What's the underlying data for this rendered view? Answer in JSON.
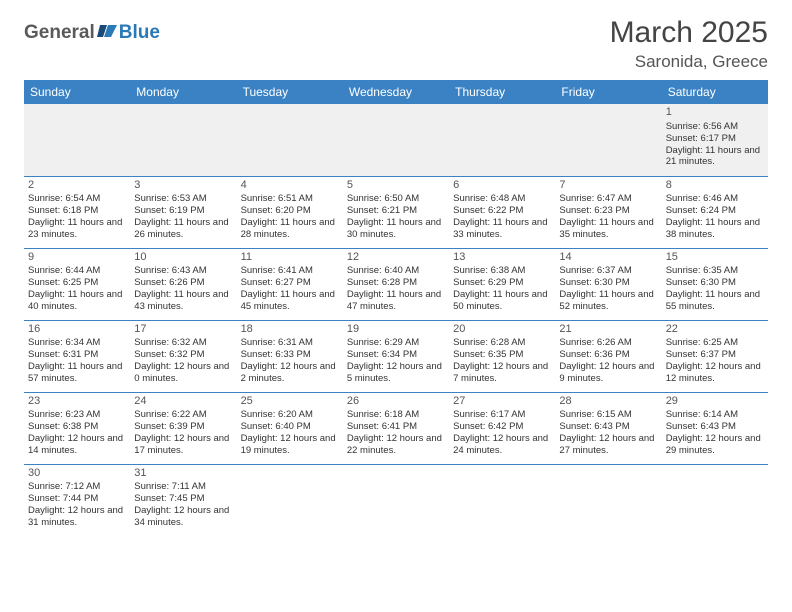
{
  "logo": {
    "text1": "General",
    "text2": "Blue"
  },
  "title": "March 2025",
  "location": "Saronida, Greece",
  "header_bg": "#3a82c4",
  "header_fg": "#ffffff",
  "border_color": "#3a82c4",
  "empty_bg": "#f0f0f0",
  "text_color": "#333333",
  "fontsize_title": 30,
  "fontsize_location": 17,
  "fontsize_dayheader": 12,
  "fontsize_cell": 9.5,
  "weekdays": [
    "Sunday",
    "Monday",
    "Tuesday",
    "Wednesday",
    "Thursday",
    "Friday",
    "Saturday"
  ],
  "weeks": [
    [
      null,
      null,
      null,
      null,
      null,
      null,
      {
        "n": "1",
        "sr": "6:56 AM",
        "ss": "6:17 PM",
        "dl": "11 hours and 21 minutes."
      }
    ],
    [
      {
        "n": "2",
        "sr": "6:54 AM",
        "ss": "6:18 PM",
        "dl": "11 hours and 23 minutes."
      },
      {
        "n": "3",
        "sr": "6:53 AM",
        "ss": "6:19 PM",
        "dl": "11 hours and 26 minutes."
      },
      {
        "n": "4",
        "sr": "6:51 AM",
        "ss": "6:20 PM",
        "dl": "11 hours and 28 minutes."
      },
      {
        "n": "5",
        "sr": "6:50 AM",
        "ss": "6:21 PM",
        "dl": "11 hours and 30 minutes."
      },
      {
        "n": "6",
        "sr": "6:48 AM",
        "ss": "6:22 PM",
        "dl": "11 hours and 33 minutes."
      },
      {
        "n": "7",
        "sr": "6:47 AM",
        "ss": "6:23 PM",
        "dl": "11 hours and 35 minutes."
      },
      {
        "n": "8",
        "sr": "6:46 AM",
        "ss": "6:24 PM",
        "dl": "11 hours and 38 minutes."
      }
    ],
    [
      {
        "n": "9",
        "sr": "6:44 AM",
        "ss": "6:25 PM",
        "dl": "11 hours and 40 minutes."
      },
      {
        "n": "10",
        "sr": "6:43 AM",
        "ss": "6:26 PM",
        "dl": "11 hours and 43 minutes."
      },
      {
        "n": "11",
        "sr": "6:41 AM",
        "ss": "6:27 PM",
        "dl": "11 hours and 45 minutes."
      },
      {
        "n": "12",
        "sr": "6:40 AM",
        "ss": "6:28 PM",
        "dl": "11 hours and 47 minutes."
      },
      {
        "n": "13",
        "sr": "6:38 AM",
        "ss": "6:29 PM",
        "dl": "11 hours and 50 minutes."
      },
      {
        "n": "14",
        "sr": "6:37 AM",
        "ss": "6:30 PM",
        "dl": "11 hours and 52 minutes."
      },
      {
        "n": "15",
        "sr": "6:35 AM",
        "ss": "6:30 PM",
        "dl": "11 hours and 55 minutes."
      }
    ],
    [
      {
        "n": "16",
        "sr": "6:34 AM",
        "ss": "6:31 PM",
        "dl": "11 hours and 57 minutes."
      },
      {
        "n": "17",
        "sr": "6:32 AM",
        "ss": "6:32 PM",
        "dl": "12 hours and 0 minutes."
      },
      {
        "n": "18",
        "sr": "6:31 AM",
        "ss": "6:33 PM",
        "dl": "12 hours and 2 minutes."
      },
      {
        "n": "19",
        "sr": "6:29 AM",
        "ss": "6:34 PM",
        "dl": "12 hours and 5 minutes."
      },
      {
        "n": "20",
        "sr": "6:28 AM",
        "ss": "6:35 PM",
        "dl": "12 hours and 7 minutes."
      },
      {
        "n": "21",
        "sr": "6:26 AM",
        "ss": "6:36 PM",
        "dl": "12 hours and 9 minutes."
      },
      {
        "n": "22",
        "sr": "6:25 AM",
        "ss": "6:37 PM",
        "dl": "12 hours and 12 minutes."
      }
    ],
    [
      {
        "n": "23",
        "sr": "6:23 AM",
        "ss": "6:38 PM",
        "dl": "12 hours and 14 minutes."
      },
      {
        "n": "24",
        "sr": "6:22 AM",
        "ss": "6:39 PM",
        "dl": "12 hours and 17 minutes."
      },
      {
        "n": "25",
        "sr": "6:20 AM",
        "ss": "6:40 PM",
        "dl": "12 hours and 19 minutes."
      },
      {
        "n": "26",
        "sr": "6:18 AM",
        "ss": "6:41 PM",
        "dl": "12 hours and 22 minutes."
      },
      {
        "n": "27",
        "sr": "6:17 AM",
        "ss": "6:42 PM",
        "dl": "12 hours and 24 minutes."
      },
      {
        "n": "28",
        "sr": "6:15 AM",
        "ss": "6:43 PM",
        "dl": "12 hours and 27 minutes."
      },
      {
        "n": "29",
        "sr": "6:14 AM",
        "ss": "6:43 PM",
        "dl": "12 hours and 29 minutes."
      }
    ],
    [
      {
        "n": "30",
        "sr": "7:12 AM",
        "ss": "7:44 PM",
        "dl": "12 hours and 31 minutes."
      },
      {
        "n": "31",
        "sr": "7:11 AM",
        "ss": "7:45 PM",
        "dl": "12 hours and 34 minutes."
      },
      null,
      null,
      null,
      null,
      null
    ]
  ],
  "labels": {
    "sunrise": "Sunrise:",
    "sunset": "Sunset:",
    "daylight": "Daylight:"
  }
}
